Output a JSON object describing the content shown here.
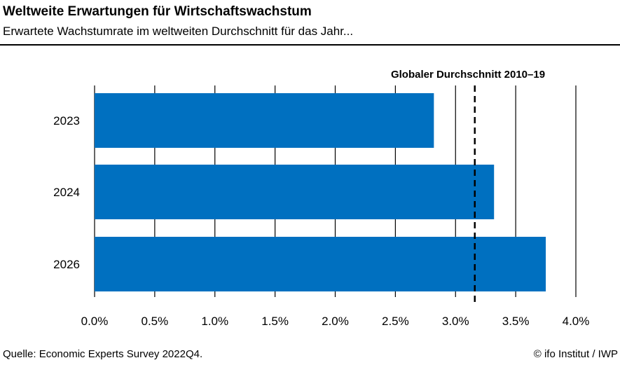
{
  "header": {
    "title": "Weltweite Erwartungen für Wirtschaftswachstum",
    "subtitle": "Erwartete Wachstumrate im weltweiten Durchschnitt für das Jahr..."
  },
  "footer": {
    "source": "Quelle: Economic Experts Survey 2022Q4.",
    "credit": "© ifo Institut / IWP"
  },
  "chart_data": {
    "type": "bar",
    "orientation": "horizontal",
    "title": "Weltweite Erwartungen für Wirtschaftswachstum",
    "subtitle": "Erwartete Wachstumrate im weltweiten Durchschnitt für das Jahr...",
    "categories": [
      "2023",
      "2024",
      "2026"
    ],
    "values": [
      2.82,
      3.32,
      3.75
    ],
    "bar_color": "#0070C0",
    "xlim": [
      0,
      4.0
    ],
    "xticks": [
      0,
      0.5,
      1.0,
      1.5,
      2.0,
      2.5,
      3.0,
      3.5,
      4.0
    ],
    "xtick_labels": [
      "0.0%",
      "0.5%",
      "1.0%",
      "1.5%",
      "2.0%",
      "2.5%",
      "3.0%",
      "3.5%",
      "4.0%"
    ],
    "grid": true,
    "reference_line": {
      "label": "Globaler Durchschnitt 2010–19",
      "value": 3.16,
      "style": "dashed"
    }
  }
}
